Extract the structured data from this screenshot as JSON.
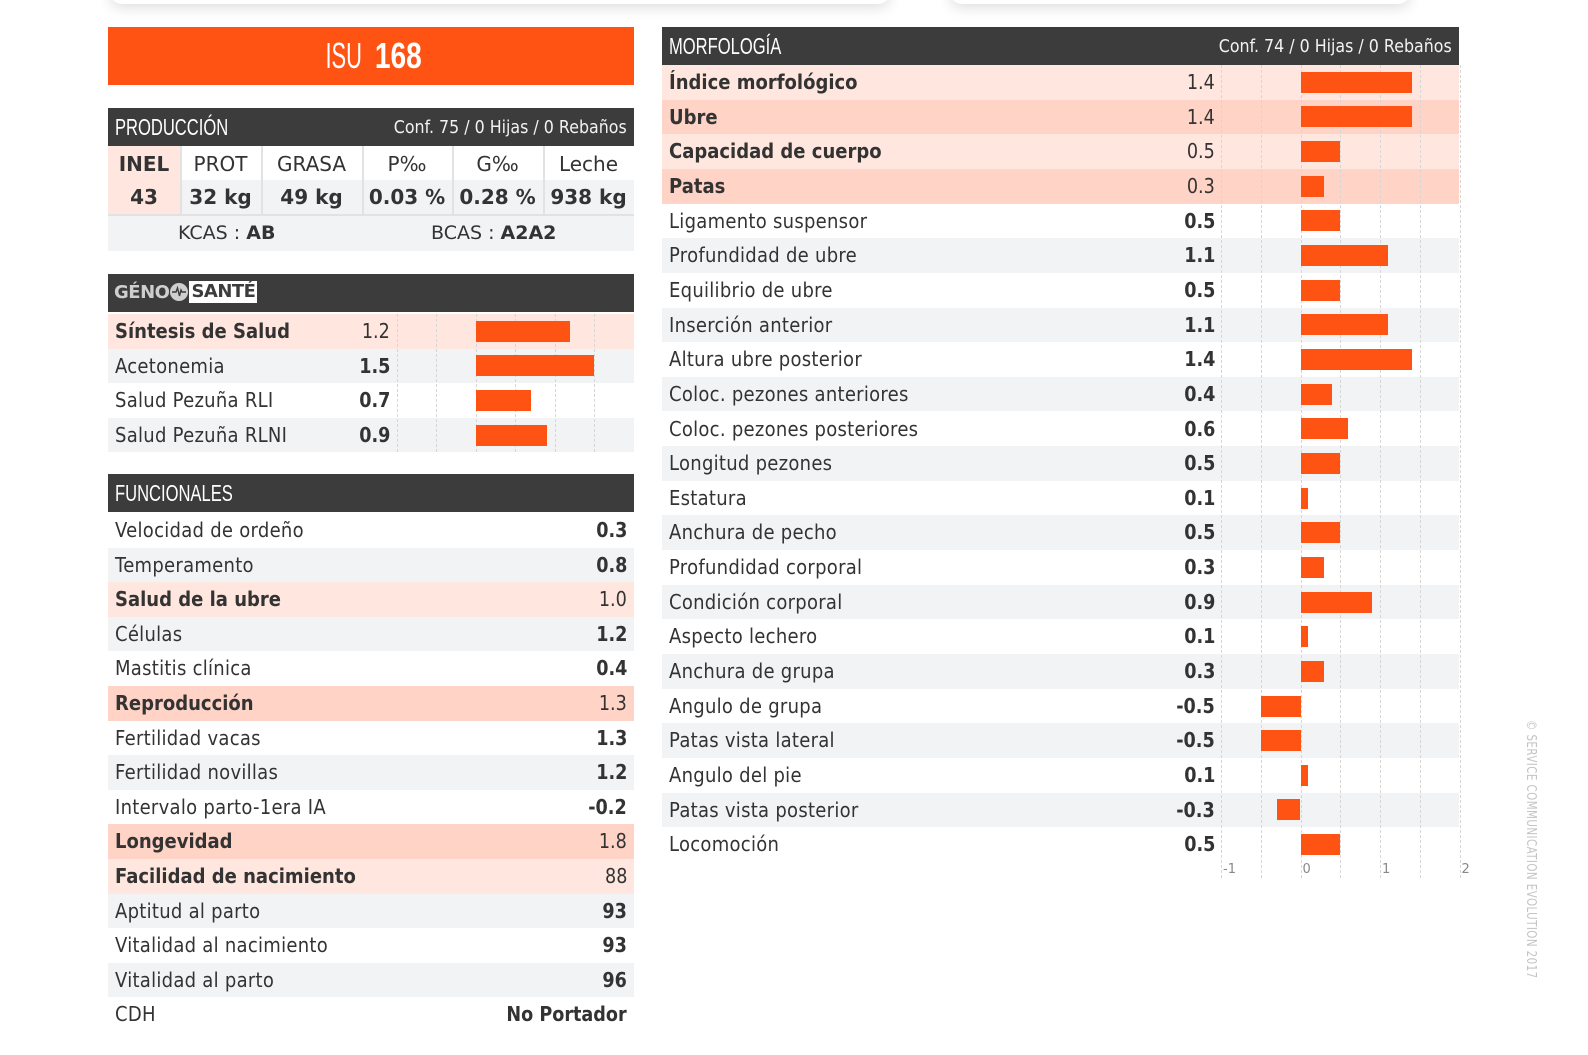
{
  "title": {
    "prefix": "ISU",
    "value": "168"
  },
  "produccion": {
    "header": "PRODUCCIÓN",
    "conf": "Conf. 75 / 0 Hijas / 0 Rebaños",
    "columns": [
      "INEL",
      "PROT",
      "GRASA",
      "P‰",
      "G‰",
      "Leche"
    ],
    "values": [
      "43",
      "32 kg",
      "49 kg",
      "0.03 %",
      "0.28 %",
      "938 kg"
    ],
    "kcas_label": "KCAS : ",
    "kcas_value": "AB",
    "bcas_label": "BCAS : ",
    "bcas_value": "A2A2"
  },
  "geno_sante": {
    "logo_text_1": "GÉNO",
    "logo_text_2": "SANTÉ",
    "rows": [
      {
        "label": "Síntesis de Salud",
        "value": "1.2",
        "num": 1.2,
        "style": "pink-bold"
      },
      {
        "label": "Acetonemia",
        "value": "1.5",
        "num": 1.5,
        "style": "grey"
      },
      {
        "label": "Salud Pezuña RLI",
        "value": "0.7",
        "num": 0.7,
        "style": "white"
      },
      {
        "label": "Salud Pezuña RLNI",
        "value": "0.9",
        "num": 0.9,
        "style": "grey"
      }
    ]
  },
  "funcionales": {
    "header": "FUNCIONALES",
    "rows": [
      {
        "label": "Velocidad de ordeño",
        "value": "0.3",
        "style": "white"
      },
      {
        "label": "Temperamento",
        "value": "0.8",
        "style": "grey"
      },
      {
        "label": "Salud de la ubre",
        "value": "1.0",
        "style": "pink-bold"
      },
      {
        "label": "Células",
        "value": "1.2",
        "style": "grey"
      },
      {
        "label": "Mastitis clínica",
        "value": "0.4",
        "style": "white"
      },
      {
        "label": "Reproducción",
        "value": "1.3",
        "style": "pink2-bold"
      },
      {
        "label": "Fertilidad vacas",
        "value": "1.3",
        "style": "white"
      },
      {
        "label": "Fertilidad novillas",
        "value": "1.2",
        "style": "grey"
      },
      {
        "label": "Intervalo parto-1era IA",
        "value": "-0.2",
        "style": "white"
      },
      {
        "label": "Longevidad",
        "value": "1.8",
        "style": "pink2-bold"
      },
      {
        "label": "Facilidad de nacimiento",
        "value": "88",
        "style": "pink-bold"
      },
      {
        "label": "Aptitud al parto",
        "value": "93",
        "style": "grey"
      },
      {
        "label": "Vitalidad al nacimiento",
        "value": "93",
        "style": "white"
      },
      {
        "label": "Vitalidad al parto",
        "value": "96",
        "style": "grey"
      },
      {
        "label": "CDH",
        "value": "No Portador",
        "style": "white"
      }
    ]
  },
  "morfologia": {
    "header": "MORFOLOGÍA",
    "conf": "Conf. 74 / 0 Hijas / 0 Rebaños"
  },
  "chart_data": [
    {
      "type": "bar",
      "title": "GÉNO SANTÉ",
      "orientation": "horizontal",
      "categories": [
        "Síntesis de Salud",
        "Acetonemia",
        "Salud Pezuña RLI",
        "Salud Pezuña RLNI"
      ],
      "values": [
        1.2,
        1.5,
        0.7,
        0.9
      ],
      "xlim": [
        -1,
        1.5
      ],
      "grid": true,
      "bar_color": "#ff5314"
    },
    {
      "type": "bar",
      "title": "MORFOLOGÍA",
      "orientation": "horizontal",
      "categories": [
        "Índice morfológico",
        "Ubre",
        "Capacidad de cuerpo",
        "Patas",
        "Ligamento suspensor",
        "Profundidad de ubre",
        "Equilibrio de ubre",
        "Inserción anterior",
        "Altura ubre posterior",
        "Coloc. pezones anteriores",
        "Coloc. pezones posteriores",
        "Longitud pezones",
        "Estatura",
        "Anchura de pecho",
        "Profundidad corporal",
        "Condición corporal",
        "Aspecto lechero",
        "Anchura de grupa",
        "Angulo de grupa",
        "Patas vista lateral",
        "Angulo del pie",
        "Patas vista posterior",
        "Locomoción"
      ],
      "values": [
        1.4,
        1.4,
        0.5,
        0.3,
        0.5,
        1.1,
        0.5,
        1.1,
        1.4,
        0.4,
        0.6,
        0.5,
        0.1,
        0.5,
        0.3,
        0.9,
        0.1,
        0.3,
        -0.5,
        -0.5,
        0.1,
        -0.3,
        0.5
      ],
      "labels": [
        "1.4",
        "1.4",
        "0.5",
        "0.3",
        "0.5",
        "1.1",
        "0.5",
        "1.1",
        "1.4",
        "0.4",
        "0.6",
        "0.5",
        "0.1",
        "0.5",
        "0.3",
        "0.9",
        "0.1",
        "0.3",
        "-0.5",
        "-0.5",
        "0.1",
        "-0.3",
        "0.5"
      ],
      "styles": [
        "pink-bold",
        "pink2-bold",
        "pink-bold",
        "pink2-bold",
        "white",
        "grey",
        "white",
        "grey",
        "white",
        "grey",
        "white",
        "grey",
        "white",
        "grey",
        "white",
        "grey",
        "white",
        "grey",
        "white",
        "grey",
        "white",
        "grey",
        "white"
      ],
      "xlim": [
        -1,
        2
      ],
      "xticks": [
        "-1",
        "0",
        "1",
        "2"
      ],
      "xtick_values": [
        -1,
        0,
        1,
        2
      ],
      "grid": true,
      "bar_color": "#ff5314"
    }
  ],
  "watermark": "© SERVICE COMMUNICATION EVOLUTION 2017"
}
